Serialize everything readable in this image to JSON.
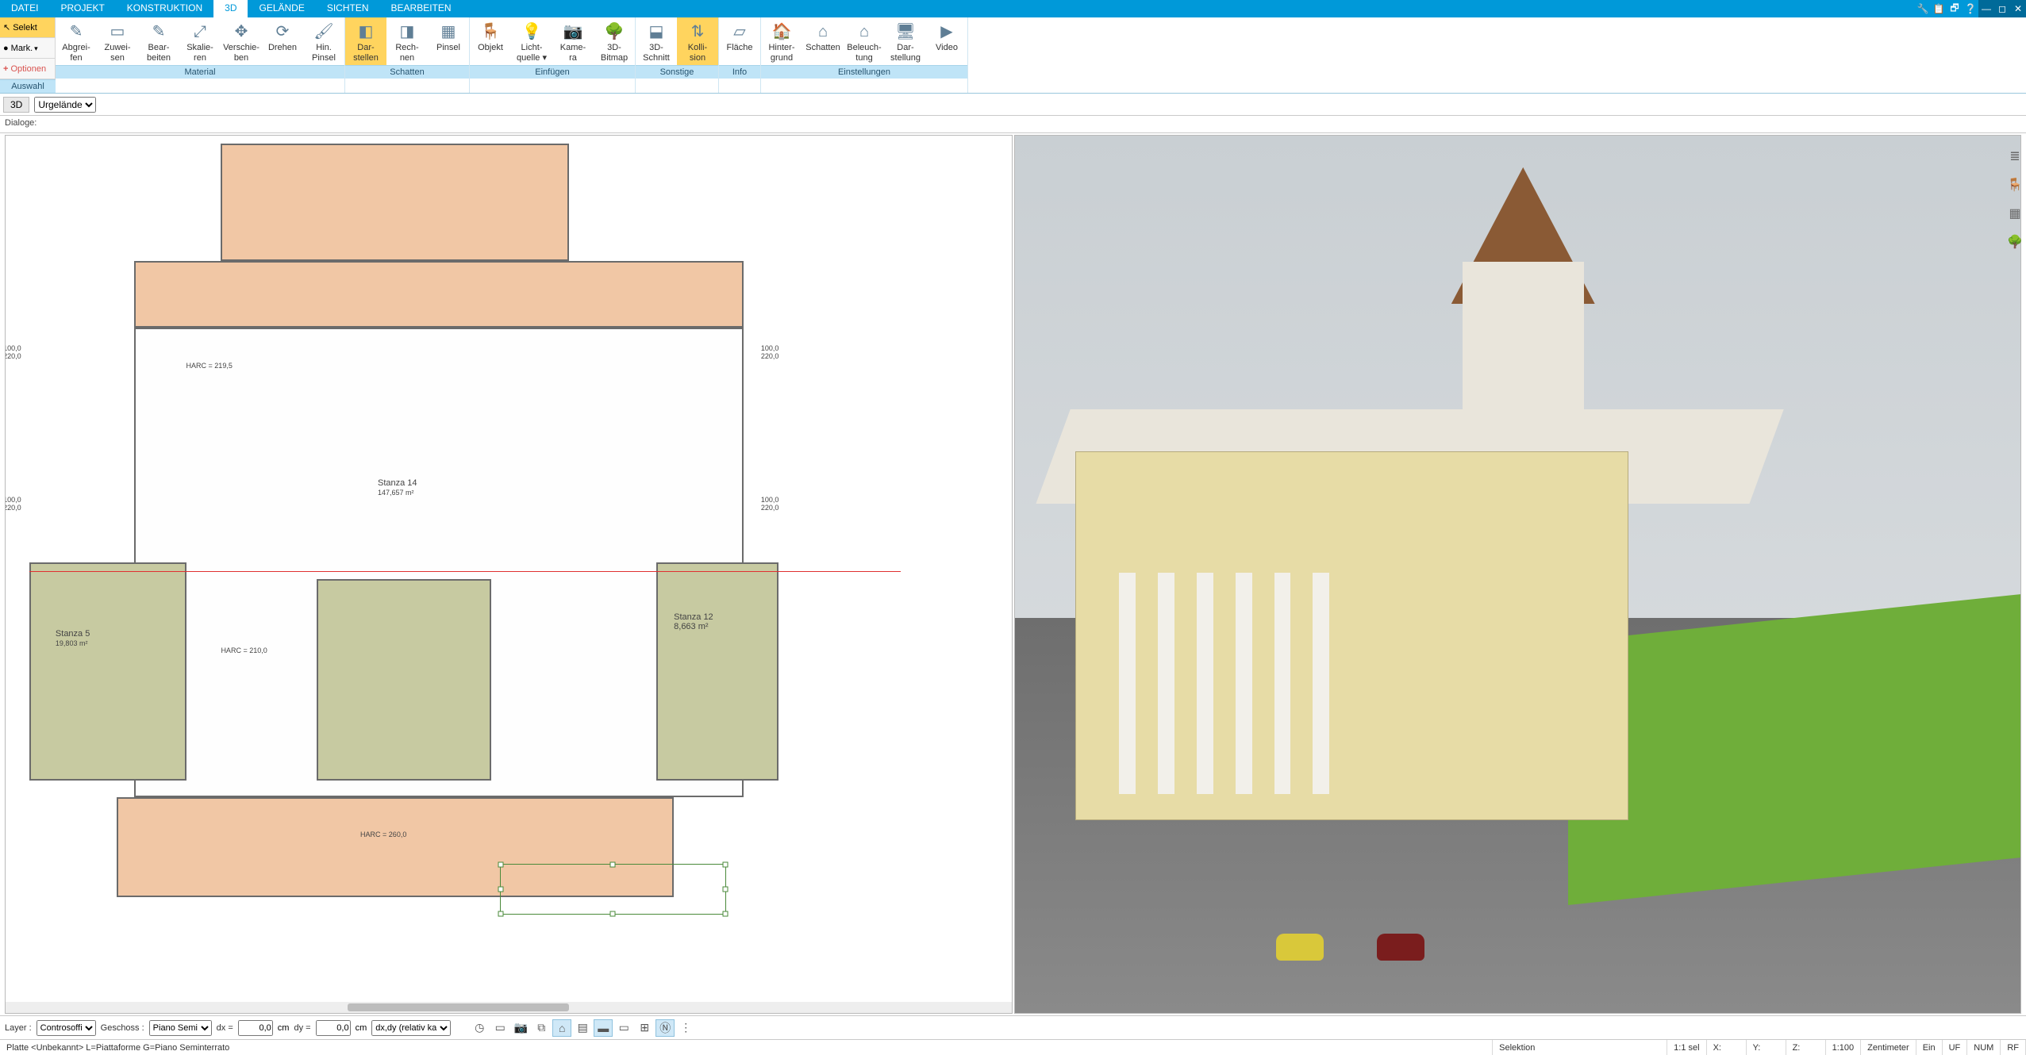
{
  "colors": {
    "brand": "#0099d9",
    "brand_dark": "#006a99",
    "ribbon_title_bg": "#bfe4f7",
    "active_btn": "#ffd45e",
    "peach": "#f1c7a5",
    "olive": "#c7caa1",
    "grass": "#6fae3a",
    "roof_cone": "#8a5a35",
    "building_wall": "#e7dca6"
  },
  "menubar": {
    "items": [
      "DATEI",
      "PROJEKT",
      "KONSTRUKTION",
      "3D",
      "GELÄNDE",
      "SICHTEN",
      "BEARBEITEN"
    ],
    "active_index": 3
  },
  "ribbon_left": {
    "selekt": "Selekt",
    "mark": "Mark.",
    "optionen": "Optionen",
    "group_title": "Auswahl"
  },
  "ribbon": {
    "groups": [
      {
        "title": "Material",
        "buttons": [
          {
            "label": "Abgrei-\nfen",
            "icon": "✎"
          },
          {
            "label": "Zuwei-\nsen",
            "icon": "▭"
          },
          {
            "label": "Bear-\nbeiten",
            "icon": "✎"
          },
          {
            "label": "Skalie-\nren",
            "icon": "⤢"
          },
          {
            "label": "Verschie-\nben",
            "icon": "✥"
          },
          {
            "label": "Drehen",
            "icon": "⟳"
          },
          {
            "label": "Hin.\nPinsel",
            "icon": "🖌"
          }
        ]
      },
      {
        "title": "Schatten",
        "buttons": [
          {
            "label": "Dar-\nstellen",
            "icon": "◧",
            "active": true
          },
          {
            "label": "Rech-\nnen",
            "icon": "◨"
          },
          {
            "label": "Pinsel",
            "icon": "▦"
          }
        ]
      },
      {
        "title": "Einfügen",
        "buttons": [
          {
            "label": "Objekt",
            "icon": "🪑"
          },
          {
            "label": "Licht-\nquelle ▾",
            "icon": "💡"
          },
          {
            "label": "Kame-\nra",
            "icon": "📷"
          },
          {
            "label": "3D-\nBitmap",
            "icon": "🌳"
          }
        ]
      },
      {
        "title": "Sonstige",
        "buttons": [
          {
            "label": "3D-\nSchnitt",
            "icon": "⬓"
          },
          {
            "label": "Kolli-\nsion",
            "icon": "⇅",
            "active": true
          }
        ]
      },
      {
        "title": "Info",
        "buttons": [
          {
            "label": "Fläche",
            "icon": "▱"
          }
        ]
      },
      {
        "title": "Einstellungen",
        "buttons": [
          {
            "label": "Hinter-\ngrund",
            "icon": "🏠"
          },
          {
            "label": "Schatten",
            "icon": "⌂"
          },
          {
            "label": "Beleuch-\ntung",
            "icon": "⌂"
          },
          {
            "label": "Dar-\nstellung",
            "icon": "🖥"
          },
          {
            "label": "Video",
            "icon": "▶"
          }
        ]
      }
    ]
  },
  "subbar": {
    "tag": "3D",
    "dropdown": "Urgelände"
  },
  "dialoge": {
    "label": "Dialoge:"
  },
  "plan": {
    "redline_top_pct": 51,
    "rooms": [
      {
        "name": "Stanza 14",
        "area": "147,657 m²"
      },
      {
        "name": "Stanza 5",
        "area": "19,803 m²"
      },
      {
        "name": "Stanza 12",
        "area": "8,663 m²"
      }
    ],
    "dims_left": [
      "100,0",
      "220,0",
      "100,0",
      "220,0"
    ],
    "dims_right": [
      "100,0",
      "220,0",
      "100,0",
      "220,0"
    ],
    "harc_note": "HARC = 210,0",
    "harc_bottom": "HARC = 260,0",
    "harc_value_upper": "HARC = 219,5",
    "selection": {
      "left_pct": 54,
      "top_pct": 86,
      "width_pct": 26,
      "height_pct": 6
    },
    "hscroll_thumb": {
      "left_pct": 34,
      "width_pct": 22
    }
  },
  "view3d": {
    "pillar_positions_pct": [
      8,
      15,
      22,
      29,
      36,
      43
    ],
    "cars": [
      {
        "color": "yellow"
      },
      {
        "color": "red"
      }
    ]
  },
  "vstrip": {
    "buttons": [
      {
        "name": "layers-icon",
        "glyph": "≣"
      },
      {
        "name": "furniture-icon",
        "glyph": "🪑"
      },
      {
        "name": "materials-icon",
        "glyph": "▦"
      },
      {
        "name": "plants-icon",
        "glyph": "🌳"
      }
    ]
  },
  "bottombar": {
    "layer_label": "Layer :",
    "layer_value": "Controsoffi",
    "geschoss_label": "Geschoss :",
    "geschoss_value": "Piano Semi",
    "dx_label": "dx =",
    "dx_value": "0,0",
    "dy_label": "dy =",
    "dy_value": "0,0",
    "unit": "cm",
    "mode": "dx,dy (relativ ka",
    "iconbuttons": [
      {
        "name": "clock-icon",
        "glyph": "◷"
      },
      {
        "name": "screen-icon",
        "glyph": "▭"
      },
      {
        "name": "camera-icon",
        "glyph": "📷"
      },
      {
        "name": "layers2-icon",
        "glyph": "⧉"
      },
      {
        "name": "roof-icon",
        "glyph": "⌂",
        "active": true
      },
      {
        "name": "hatch-icon",
        "glyph": "▤"
      },
      {
        "name": "floor-icon",
        "glyph": "▬",
        "active": true
      },
      {
        "name": "dim-icon",
        "glyph": "▭"
      },
      {
        "name": "grid-icon",
        "glyph": "⊞"
      },
      {
        "name": "north-icon",
        "glyph": "Ⓝ",
        "active": true
      },
      {
        "name": "more-icon",
        "glyph": "⋮"
      }
    ]
  },
  "statusbar": {
    "left": "Platte <Unbekannt> L=Piattaforme G=Piano Seminterrato",
    "mode": "Selektion",
    "sel": "1:1 sel",
    "x": "X:",
    "y": "Y:",
    "z": "Z:",
    "scale": "1:100",
    "unit": "Zentimeter",
    "ein": "Ein",
    "uf": "UF",
    "num": "NUM",
    "rf": "RF"
  }
}
